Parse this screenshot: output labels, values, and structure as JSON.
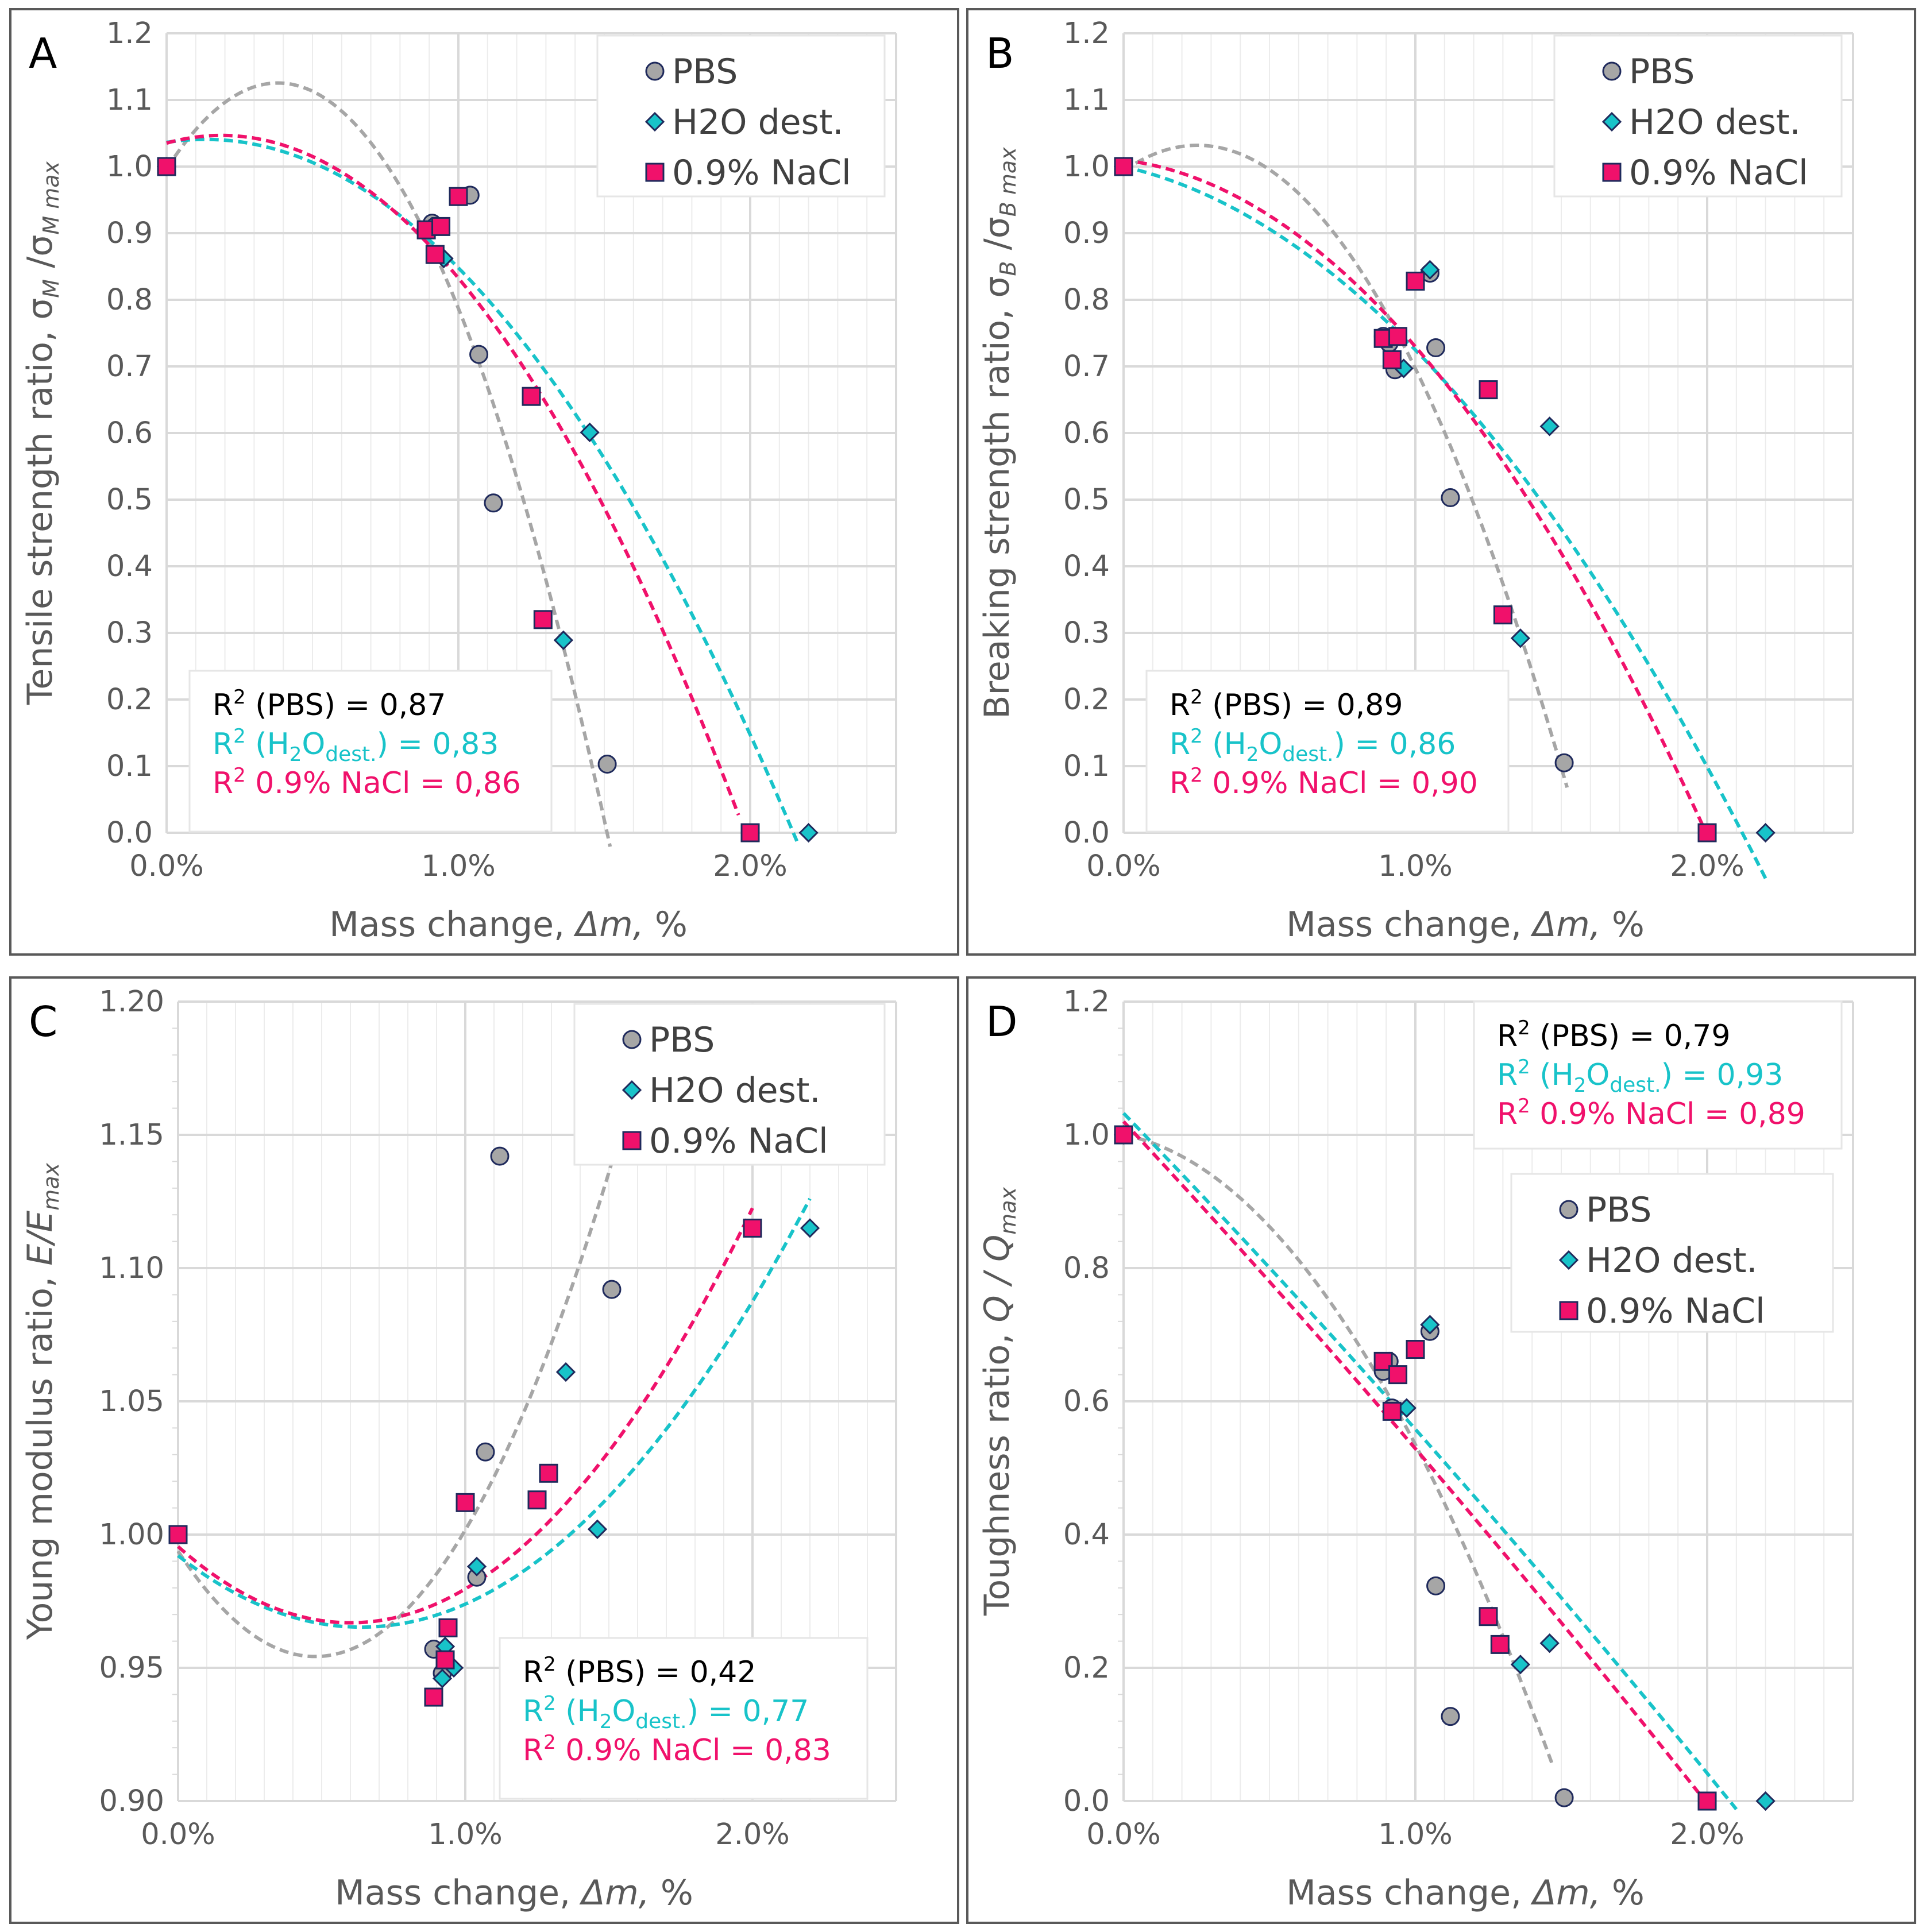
{
  "colors": {
    "pbs": "#a6a6a6",
    "h2o": "#18c3c9",
    "nacl": "#f0116b",
    "grid_major": "#d9d9d9",
    "grid_minor": "#ececec",
    "axis_text": "#595959",
    "marker_edge": "#1f2a5c",
    "r2_pbs": "#000000"
  },
  "legend": {
    "pbs": "PBS",
    "h2o": "H2O dest.",
    "nacl": "0.9% NaCl"
  },
  "chart_data": [
    {
      "panel": "A",
      "type": "scatter",
      "xlabel": "Mass change, ",
      "xlabel_italic": "Δm,",
      "xlabel_unit": " %",
      "ylabel": "Tensile strength ratio, σ",
      "ylabel_sub1": "M",
      "ylabel_mid": " /σ",
      "ylabel_sub2": "M max",
      "xlim": [
        0,
        2.5
      ],
      "ylim": [
        0,
        1.2
      ],
      "xticks": [
        0,
        1,
        2
      ],
      "xtick_labels": [
        "0.0%",
        "1.0%",
        "2.0%"
      ],
      "yticks": [
        0,
        0.1,
        0.2,
        0.3,
        0.4,
        0.5,
        0.6,
        0.7,
        0.8,
        0.9,
        1.0,
        1.1,
        1.2
      ],
      "ytick_labels": [
        "0.0",
        "0.1",
        "0.2",
        "0.3",
        "0.4",
        "0.5",
        "0.6",
        "0.7",
        "0.8",
        "0.9",
        "1.0",
        "1.1",
        "1.2"
      ],
      "series": [
        {
          "name": "PBS",
          "x": [
            0,
            0.91,
            0.92,
            1.04,
            1.07,
            1.12,
            1.51
          ],
          "y": [
            1.0,
            0.915,
            0.91,
            0.957,
            0.718,
            0.495,
            0.103
          ]
        },
        {
          "name": "H2O dest.",
          "x": [
            0,
            0.95,
            1.45,
            1.36,
            2.2
          ],
          "y": [
            1.0,
            0.862,
            0.601,
            0.289,
            0.0
          ]
        },
        {
          "name": "0.9% NaCl",
          "x": [
            0,
            0.89,
            0.92,
            0.94,
            1.0,
            1.25,
            1.29,
            2.0
          ],
          "y": [
            1.0,
            0.905,
            0.868,
            0.91,
            0.955,
            0.655,
            0.32,
            0.0
          ]
        }
      ],
      "trendlines": [
        {
          "name": "PBS",
          "coeffs": [
            0.9967,
            0.6749,
            -0.8844
          ],
          "x_range": [
            0,
            1.52
          ]
        },
        {
          "name": "H2O dest.",
          "coeffs": [
            1.0363,
            0.0678,
            -0.2562
          ],
          "x_range": [
            0,
            2.16
          ]
        },
        {
          "name": "0.9% NaCl",
          "coeffs": [
            1.0352,
            0.1224,
            -0.325
          ],
          "x_range": [
            0,
            1.96
          ]
        }
      ],
      "r2_box": {
        "pbs_prefix": "R",
        "pbs_label": " (PBS) = 0,87",
        "h2o_prefix": "R",
        "h2o_mid": " (H",
        "h2o_sub": "dest.",
        "h2o_value": ") = 0,83",
        "nacl_prefix": "R",
        "nacl_label": " 0.9% NaCl = 0,86",
        "sup": "2",
        "o": "O"
      }
    },
    {
      "panel": "B",
      "type": "scatter",
      "xlabel": "Mass change, ",
      "xlabel_italic": "Δm,",
      "xlabel_unit": " %",
      "ylabel": "Breaking strength ratio, σ",
      "ylabel_sub1": "B",
      "ylabel_mid": " /σ",
      "ylabel_sub2": "B max",
      "xlim": [
        0,
        2.5
      ],
      "ylim": [
        0,
        1.2
      ],
      "xticks": [
        0,
        1,
        2
      ],
      "xtick_labels": [
        "0.0%",
        "1.0%",
        "2.0%"
      ],
      "yticks": [
        0,
        0.1,
        0.2,
        0.3,
        0.4,
        0.5,
        0.6,
        0.7,
        0.8,
        0.9,
        1.0,
        1.1,
        1.2
      ],
      "ytick_labels": [
        "0.0",
        "0.1",
        "0.2",
        "0.3",
        "0.4",
        "0.5",
        "0.6",
        "0.7",
        "0.8",
        "0.9",
        "1.0",
        "1.1",
        "1.2"
      ],
      "series": [
        {
          "name": "PBS",
          "x": [
            0,
            0.89,
            0.91,
            0.93,
            1.05,
            1.07,
            1.12,
            1.51
          ],
          "y": [
            1.0,
            0.745,
            0.735,
            0.695,
            0.84,
            0.728,
            0.503,
            0.105
          ]
        },
        {
          "name": "H2O dest.",
          "x": [
            0,
            0.96,
            1.05,
            1.46,
            1.36,
            2.2
          ],
          "y": [
            1.0,
            0.697,
            0.845,
            0.61,
            0.292,
            0.0
          ]
        },
        {
          "name": "0.9% NaCl",
          "x": [
            0,
            0.89,
            0.92,
            0.94,
            1.0,
            1.25,
            1.3,
            2.0
          ],
          "y": [
            1.0,
            0.742,
            0.71,
            0.745,
            0.828,
            0.665,
            0.327,
            0.0
          ]
        }
      ],
      "trendlines": [
        {
          "name": "PBS",
          "coeffs": [
            0.9934,
            0.3042,
            -0.6007
          ],
          "x_range": [
            0,
            1.52
          ]
        },
        {
          "name": "H2O dest.",
          "coeffs": [
            1.0,
            -0.1,
            -0.1753
          ],
          "x_range": [
            0,
            2.2
          ]
        },
        {
          "name": "0.9% NaCl",
          "coeffs": [
            1.0097,
            -0.0535,
            -0.2266
          ],
          "x_range": [
            0,
            2.0
          ]
        }
      ],
      "r2_box": {
        "pbs_prefix": "R",
        "pbs_label": " (PBS) = 0,89",
        "h2o_prefix": "R",
        "h2o_mid": " (H",
        "h2o_sub": "dest.",
        "h2o_value": ") = 0,86",
        "nacl_prefix": "R",
        "nacl_label": " 0.9% NaCl = 0,90",
        "sup": "2",
        "o": "O"
      }
    },
    {
      "panel": "C",
      "type": "scatter",
      "xlabel": "Mass change, ",
      "xlabel_italic": "Δm,",
      "xlabel_unit": " %",
      "ylabel": "Young modulus ratio, ",
      "ylabel_italic": "E/E",
      "ylabel_sub2": "max",
      "xlim": [
        0,
        2.5
      ],
      "ylim": [
        0.9,
        1.2
      ],
      "xticks": [
        0,
        1,
        2
      ],
      "xtick_labels": [
        "0.0%",
        "1.0%",
        "2.0%"
      ],
      "yticks": [
        0.9,
        0.95,
        1.0,
        1.05,
        1.1,
        1.15,
        1.2
      ],
      "ytick_labels": [
        "0.90",
        "0.95",
        "1.00",
        "1.05",
        "1.10",
        "1.15",
        "1.20"
      ],
      "series": [
        {
          "name": "PBS",
          "x": [
            0,
            0.89,
            0.92,
            1.04,
            1.07,
            1.12,
            1.51
          ],
          "y": [
            1.0,
            0.957,
            0.948,
            0.984,
            1.031,
            1.142,
            1.092
          ]
        },
        {
          "name": "H2O dest.",
          "x": [
            0.92,
            0.93,
            0.96,
            1.04,
            1.35,
            1.46,
            2.2
          ],
          "y": [
            0.946,
            0.958,
            0.95,
            0.988,
            1.061,
            1.002,
            1.115
          ]
        },
        {
          "name": "0.9% NaCl",
          "x": [
            0,
            0.89,
            0.93,
            0.94,
            1.0,
            1.25,
            1.29,
            2.0
          ],
          "y": [
            1.0,
            0.939,
            0.953,
            0.965,
            1.012,
            1.013,
            1.023,
            1.115
          ]
        }
      ],
      "trendlines": [
        {
          "name": "PBS",
          "coeffs": [
            0.9938,
            -0.1658,
            0.1737
          ],
          "x_range": [
            0,
            1.51
          ]
        },
        {
          "name": "H2O dest.",
          "coeffs": [
            0.9921,
            -0.0841,
            0.0659
          ],
          "x_range": [
            0,
            2.2
          ]
        },
        {
          "name": "0.9% NaCl",
          "coeffs": [
            0.9955,
            -0.0953,
            0.0794
          ],
          "x_range": [
            0,
            2.0
          ]
        }
      ],
      "r2_box": {
        "pbs_prefix": "R",
        "pbs_label": " (PBS) = 0,42",
        "h2o_prefix": "R",
        "h2o_mid": " (H",
        "h2o_sub": "dest.",
        "h2o_value": ") = 0,77",
        "nacl_prefix": "R",
        "nacl_label": " 0.9% NaCl = 0,83",
        "sup": "2",
        "o": "O"
      }
    },
    {
      "panel": "D",
      "type": "scatter",
      "xlabel": "Mass change, ",
      "xlabel_italic": "Δm,",
      "xlabel_unit": " %",
      "ylabel": "Toughness ratio, ",
      "ylabel_italic": "Q / Q",
      "ylabel_sub2": "max",
      "xlim": [
        0,
        2.5
      ],
      "ylim": [
        0,
        1.2
      ],
      "xticks": [
        0,
        1,
        2
      ],
      "xtick_labels": [
        "0.0%",
        "1.0%",
        "2.0%"
      ],
      "yticks": [
        0,
        0.2,
        0.4,
        0.6,
        0.8,
        1.0,
        1.2
      ],
      "ytick_labels": [
        "0.0",
        "0.2",
        "0.4",
        "0.6",
        "0.8",
        "1.0",
        "1.2"
      ],
      "series": [
        {
          "name": "PBS",
          "x": [
            0,
            0.89,
            0.91,
            0.92,
            1.05,
            1.07,
            1.12,
            1.51
          ],
          "y": [
            1.0,
            0.645,
            0.66,
            0.59,
            0.705,
            0.323,
            0.127,
            0.005
          ]
        },
        {
          "name": "H2O dest.",
          "x": [
            0,
            0.97,
            1.05,
            1.36,
            1.46,
            2.2
          ],
          "y": [
            1.0,
            0.59,
            0.715,
            0.205,
            0.237,
            0.0
          ]
        },
        {
          "name": "0.9% NaCl",
          "x": [
            0,
            0.89,
            0.92,
            0.94,
            1.0,
            1.25,
            1.29,
            2.0
          ],
          "y": [
            1.0,
            0.66,
            0.585,
            0.64,
            0.678,
            0.277,
            0.235,
            0.0
          ]
        }
      ],
      "trendlines": [
        {
          "name": "PBS",
          "coeffs": [
            1.0,
            -0.0855,
            -0.3795
          ],
          "x_range": [
            0,
            1.47
          ]
        },
        {
          "name": "H2O dest.",
          "coeffs": [
            1.0325,
            -0.4532,
            -0.0211
          ],
          "x_range": [
            0,
            2.1
          ]
        },
        {
          "name": "0.9% NaCl",
          "coeffs": [
            1.02,
            -0.4701,
            -0.0209
          ],
          "x_range": [
            0,
            1.97
          ]
        }
      ],
      "r2_box": {
        "pbs_prefix": "R",
        "pbs_label": " (PBS) = 0,79",
        "h2o_prefix": "R",
        "h2o_mid": " (H",
        "h2o_sub": "dest.",
        "h2o_value": ") = 0,93",
        "nacl_prefix": "R",
        "nacl_label": " 0.9% NaCl = 0,89",
        "sup": "2",
        "o": "O"
      }
    }
  ]
}
